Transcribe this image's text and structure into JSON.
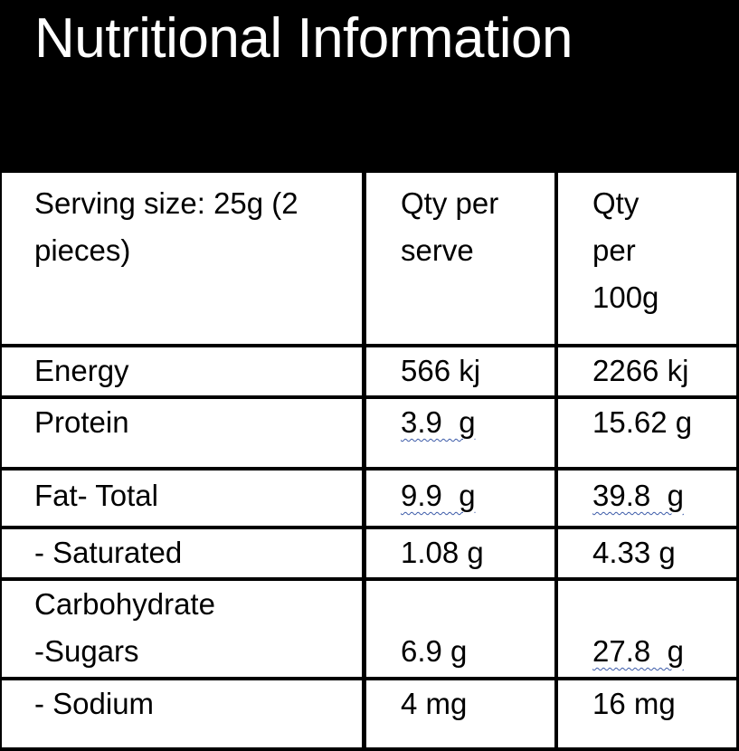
{
  "title": "Nutritional Information",
  "header_row": {
    "label": "Serving size: 25g (2 pieces)",
    "col_serve": "Qty per serve",
    "col_100g_line1": "Qty",
    "col_100g_line2": "per",
    "col_100g_line3": "100g"
  },
  "rows": [
    {
      "label": "Energy",
      "serve": "566 kj",
      "per100": "2266 kj"
    },
    {
      "label": "Protein",
      "serve": "3.9  g",
      "per100": "15.62 g"
    },
    {
      "label": "Fat- Total",
      "serve": "9.9  g",
      "per100": "39.8  g"
    },
    {
      "label": "- Saturated",
      "serve": "1.08 g",
      "per100": "4.33 g"
    },
    {
      "label_line1": "Carbohydrate",
      "label_line2": "-Sugars",
      "serve": "6.9 g",
      "per100": "27.8  g"
    },
    {
      "label": "- Sodium",
      "serve": "4 mg",
      "per100": "16 mg"
    }
  ]
}
